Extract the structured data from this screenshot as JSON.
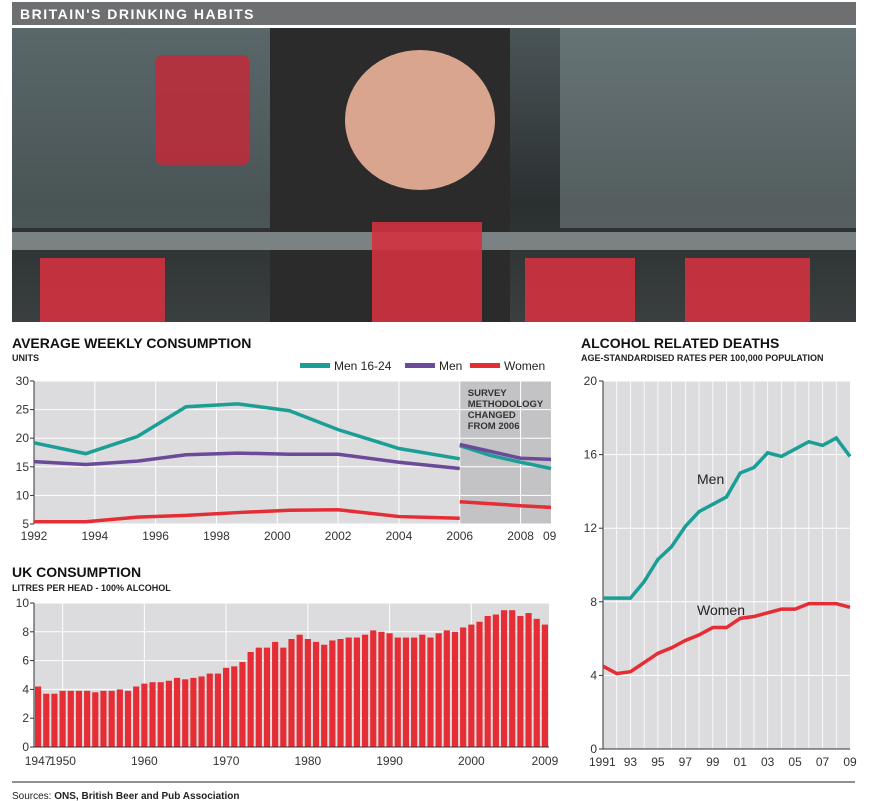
{
  "banner": "BRITAIN'S DRINKING HABITS",
  "sources_label": "Sources:",
  "sources": "ONS, British Beer and Pub Association",
  "colors": {
    "teal": "#1a9e96",
    "purple": "#6b4a9a",
    "red": "#e52d36",
    "plot_bg": "#dcdcde",
    "shade": "#c3c3c5",
    "banner": "#6e6f71"
  },
  "chart_data": [
    {
      "type": "line",
      "title": "AVERAGE WEEKLY CONSUMPTION",
      "ylabel": "UNITS",
      "ylim": [
        5,
        30
      ],
      "yticks": [
        "5",
        "10",
        "15",
        "20",
        "25",
        "30"
      ],
      "xlim": [
        1992,
        2009
      ],
      "xticks": [
        "1992",
        "1994",
        "1996",
        "1998",
        "2000",
        "2002",
        "2004",
        "2006",
        "2008",
        "09"
      ],
      "annotation": [
        "SURVEY",
        "METHODOLOGY",
        "CHANGED",
        "FROM 2006"
      ],
      "legend": "top-right",
      "series": [
        {
          "name": "Men 16-24",
          "color": "#1a9e96",
          "x": [
            1992,
            1993.7,
            1995.4,
            1997,
            1998.7,
            2000.4,
            2002,
            2004,
            2006
          ],
          "y": [
            19.2,
            17.3,
            20.3,
            25.5,
            26,
            24.8,
            21.5,
            18.2,
            16.4
          ],
          "x2": [
            2006,
            2007,
            2008,
            2009
          ],
          "y2": [
            18.7,
            17,
            15.8,
            14.7
          ]
        },
        {
          "name": "Men",
          "color": "#6b4a9a",
          "x": [
            1992,
            1993.7,
            1995.4,
            1997,
            1998.7,
            2000.4,
            2002,
            2004,
            2006
          ],
          "y": [
            15.9,
            15.4,
            16,
            17.1,
            17.4,
            17.2,
            17.2,
            15.8,
            14.7
          ],
          "x2": [
            2006,
            2008,
            2009
          ],
          "y2": [
            18.9,
            16.5,
            16.3
          ]
        },
        {
          "name": "Women",
          "color": "#e52d36",
          "x": [
            1992,
            1993.7,
            1995.4,
            1997,
            1998.7,
            2000.4,
            2002,
            2004,
            2006
          ],
          "y": [
            5.4,
            5.4,
            6.2,
            6.5,
            7.0,
            7.4,
            7.5,
            6.3,
            6.0
          ],
          "x2": [
            2006,
            2008,
            2009
          ],
          "y2": [
            8.9,
            8.2,
            7.9
          ]
        }
      ]
    },
    {
      "type": "bar",
      "title": "UK CONSUMPTION",
      "ylabel": "LITRES PER HEAD - 100% ALCOHOL",
      "ylim": [
        0,
        10
      ],
      "yticks": [
        "0",
        "2",
        "4",
        "6",
        "8",
        "10"
      ],
      "xticks": [
        "1947",
        "1950",
        "1960",
        "1970",
        "1980",
        "1990",
        "2000",
        "2009"
      ],
      "start_year": 1947,
      "values": [
        4.2,
        3.7,
        3.7,
        3.9,
        3.9,
        3.9,
        3.9,
        3.8,
        3.9,
        3.9,
        4.0,
        3.9,
        4.2,
        4.4,
        4.5,
        4.5,
        4.6,
        4.8,
        4.7,
        4.8,
        4.9,
        5.1,
        5.1,
        5.5,
        5.6,
        5.9,
        6.6,
        6.9,
        6.9,
        7.3,
        6.9,
        7.5,
        7.8,
        7.5,
        7.3,
        7.1,
        7.4,
        7.5,
        7.6,
        7.6,
        7.8,
        8.1,
        8.0,
        7.9,
        7.6,
        7.6,
        7.6,
        7.8,
        7.6,
        7.9,
        8.1,
        8.0,
        8.3,
        8.5,
        8.7,
        9.1,
        9.2,
        9.5,
        9.5,
        9.1,
        9.3,
        8.9,
        8.5
      ]
    },
    {
      "type": "line",
      "title": "ALCOHOL RELATED DEATHS",
      "ylabel": "AGE-STANDARDISED RATES PER 100,000 POPULATION",
      "ylim": [
        0,
        20
      ],
      "yticks": [
        "0",
        "4",
        "8",
        "12",
        "16",
        "20"
      ],
      "xlim": [
        1991,
        2009
      ],
      "xticks": [
        "1991",
        "93",
        "95",
        "97",
        "99",
        "01",
        "03",
        "05",
        "07",
        "09"
      ],
      "series": [
        {
          "name": "Men",
          "color": "#1a9e96",
          "y": [
            8.2,
            8.2,
            8.2,
            9.1,
            10.3,
            11.0,
            12.1,
            12.9,
            13.3,
            13.7,
            15.0,
            15.3,
            16.1,
            15.9,
            16.3,
            16.7,
            16.5,
            16.9,
            15.9
          ]
        },
        {
          "name": "Women",
          "color": "#e52d36",
          "y": [
            4.5,
            4.1,
            4.2,
            4.7,
            5.2,
            5.5,
            5.9,
            6.2,
            6.6,
            6.6,
            7.1,
            7.2,
            7.4,
            7.6,
            7.6,
            7.9,
            7.9,
            7.9,
            7.7
          ]
        }
      ]
    }
  ]
}
